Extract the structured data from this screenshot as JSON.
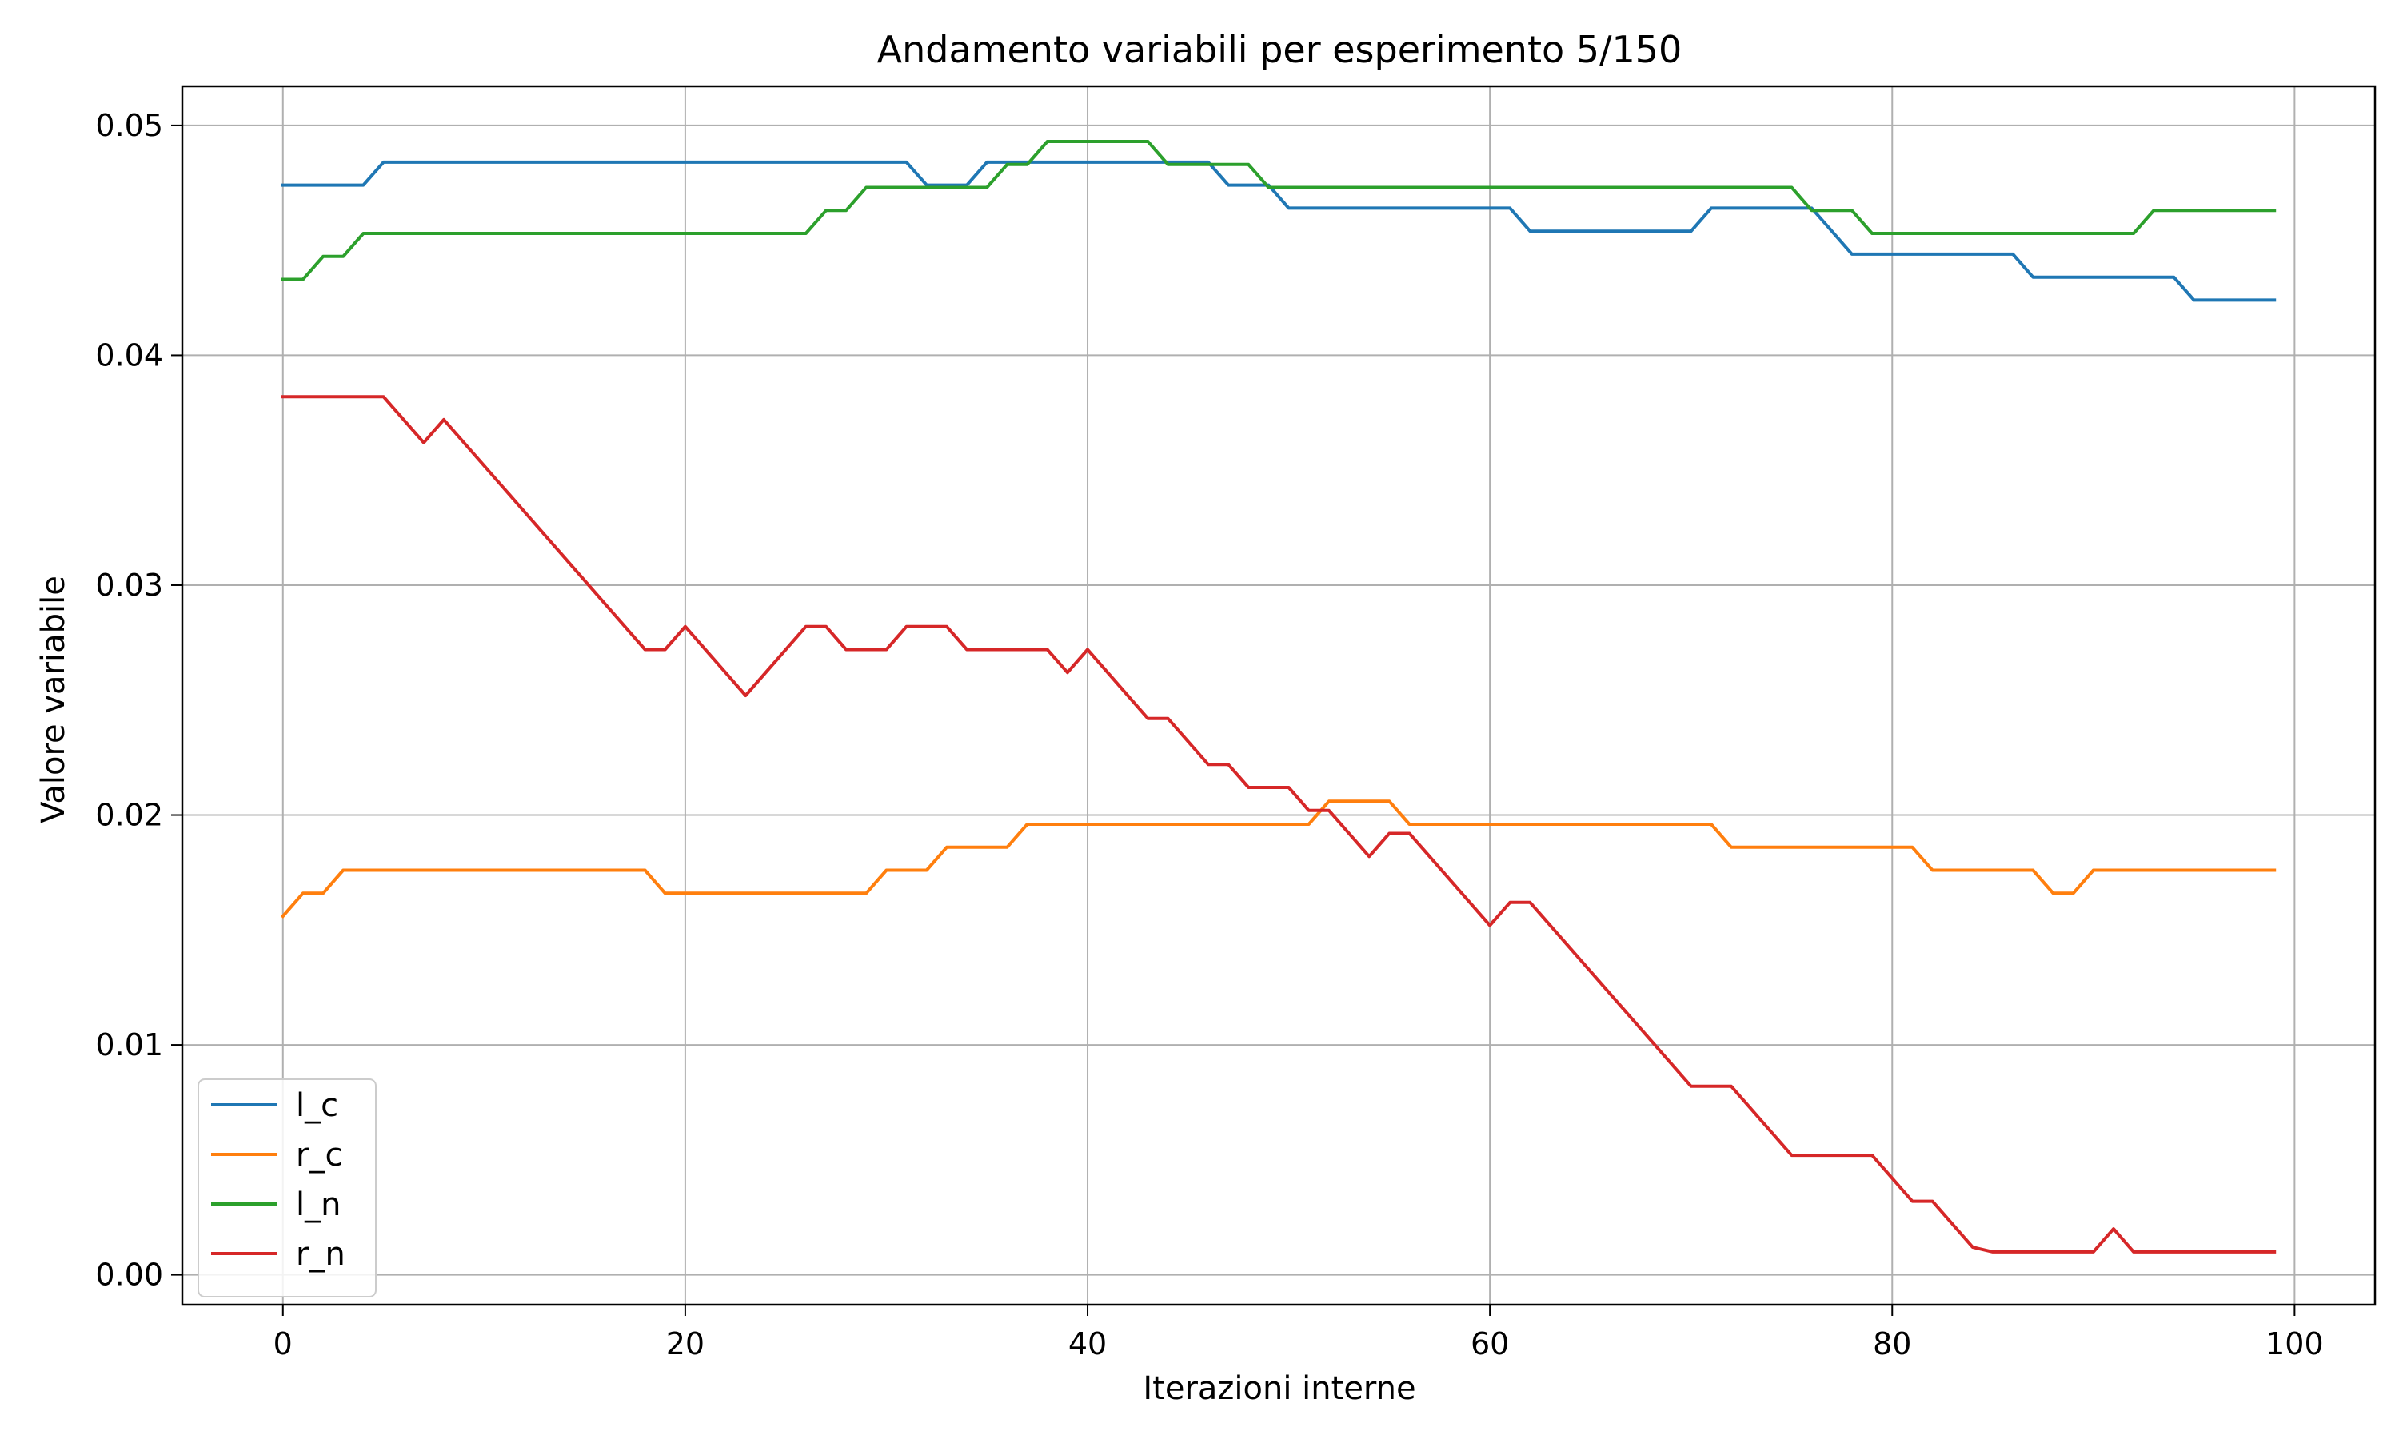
{
  "chart_data": {
    "type": "line",
    "title": "Andamento variabili per esperimento 5/150",
    "xlabel": "Iterazioni interne",
    "ylabel": "Valore variabile",
    "xlim": [
      -5,
      104
    ],
    "ylim": [
      -0.0013,
      0.0517
    ],
    "xticks": [
      "0",
      "20",
      "40",
      "60",
      "80",
      "100"
    ],
    "yticks": [
      "0.00",
      "0.01",
      "0.02",
      "0.03",
      "0.04",
      "0.05"
    ],
    "grid": true,
    "legend_position": "lower left",
    "series": [
      {
        "name": "l_c",
        "color": "#1f77b4",
        "points": [
          [
            0,
            0.0474
          ],
          [
            4,
            0.0474
          ],
          [
            5,
            0.0484
          ],
          [
            31,
            0.0484
          ],
          [
            32,
            0.0474
          ],
          [
            34,
            0.0474
          ],
          [
            35,
            0.0484
          ],
          [
            46,
            0.0484
          ],
          [
            47,
            0.0474
          ],
          [
            49,
            0.0474
          ],
          [
            50,
            0.0464
          ],
          [
            61,
            0.0464
          ],
          [
            62,
            0.0454
          ],
          [
            70,
            0.0454
          ],
          [
            71,
            0.0464
          ],
          [
            76,
            0.0464
          ],
          [
            78,
            0.0444
          ],
          [
            86,
            0.0444
          ],
          [
            87,
            0.0434
          ],
          [
            94,
            0.0434
          ],
          [
            95,
            0.0424
          ],
          [
            99,
            0.0424
          ]
        ]
      },
      {
        "name": "r_c",
        "color": "#ff7f0e",
        "points": [
          [
            0,
            0.0156
          ],
          [
            1,
            0.0166
          ],
          [
            2,
            0.0166
          ],
          [
            3,
            0.0176
          ],
          [
            18,
            0.0176
          ],
          [
            19,
            0.0166
          ],
          [
            29,
            0.0166
          ],
          [
            30,
            0.0176
          ],
          [
            32,
            0.0176
          ],
          [
            33,
            0.0186
          ],
          [
            36,
            0.0186
          ],
          [
            37,
            0.0196
          ],
          [
            51,
            0.0196
          ],
          [
            52,
            0.0206
          ],
          [
            55,
            0.0206
          ],
          [
            56,
            0.0196
          ],
          [
            71,
            0.0196
          ],
          [
            72,
            0.0186
          ],
          [
            81,
            0.0186
          ],
          [
            82,
            0.0176
          ],
          [
            87,
            0.0176
          ],
          [
            88,
            0.0166
          ],
          [
            89,
            0.0166
          ],
          [
            90,
            0.0176
          ],
          [
            99,
            0.0176
          ]
        ]
      },
      {
        "name": "l_n",
        "color": "#2ca02c",
        "points": [
          [
            0,
            0.0433
          ],
          [
            1,
            0.0433
          ],
          [
            2,
            0.0443
          ],
          [
            3,
            0.0443
          ],
          [
            4,
            0.0453
          ],
          [
            26,
            0.0453
          ],
          [
            27,
            0.0463
          ],
          [
            28,
            0.0463
          ],
          [
            29,
            0.0473
          ],
          [
            35,
            0.0473
          ],
          [
            36,
            0.0483
          ],
          [
            37,
            0.0483
          ],
          [
            38,
            0.0493
          ],
          [
            43,
            0.0493
          ],
          [
            44,
            0.0483
          ],
          [
            48,
            0.0483
          ],
          [
            49,
            0.0473
          ],
          [
            75,
            0.0473
          ],
          [
            76,
            0.0463
          ],
          [
            78,
            0.0463
          ],
          [
            79,
            0.0453
          ],
          [
            92,
            0.0453
          ],
          [
            93,
            0.0463
          ],
          [
            99,
            0.0463
          ]
        ]
      },
      {
        "name": "r_n",
        "color": "#d62728",
        "points": [
          [
            0,
            0.0382
          ],
          [
            5,
            0.0382
          ],
          [
            7,
            0.0362
          ],
          [
            8,
            0.0372
          ],
          [
            18,
            0.0272
          ],
          [
            19,
            0.0272
          ],
          [
            20,
            0.0282
          ],
          [
            23,
            0.0252
          ],
          [
            26,
            0.0282
          ],
          [
            27,
            0.0282
          ],
          [
            28,
            0.0272
          ],
          [
            30,
            0.0272
          ],
          [
            31,
            0.0282
          ],
          [
            33,
            0.0282
          ],
          [
            34,
            0.0272
          ],
          [
            38,
            0.0272
          ],
          [
            39,
            0.0262
          ],
          [
            40,
            0.0272
          ],
          [
            43,
            0.0242
          ],
          [
            44,
            0.0242
          ],
          [
            46,
            0.0222
          ],
          [
            47,
            0.0222
          ],
          [
            48,
            0.0212
          ],
          [
            50,
            0.0212
          ],
          [
            51,
            0.0202
          ],
          [
            52,
            0.0202
          ],
          [
            54,
            0.0182
          ],
          [
            55,
            0.0192
          ],
          [
            56,
            0.0192
          ],
          [
            60,
            0.0152
          ],
          [
            61,
            0.0162
          ],
          [
            62,
            0.0162
          ],
          [
            70,
            0.0082
          ],
          [
            72,
            0.0082
          ],
          [
            75,
            0.0052
          ],
          [
            79,
            0.0052
          ],
          [
            81,
            0.0032
          ],
          [
            82,
            0.0032
          ],
          [
            84,
            0.0012
          ],
          [
            85,
            0.001
          ],
          [
            90,
            0.001
          ],
          [
            91,
            0.002
          ],
          [
            92,
            0.001
          ],
          [
            99,
            0.001
          ]
        ]
      }
    ]
  }
}
